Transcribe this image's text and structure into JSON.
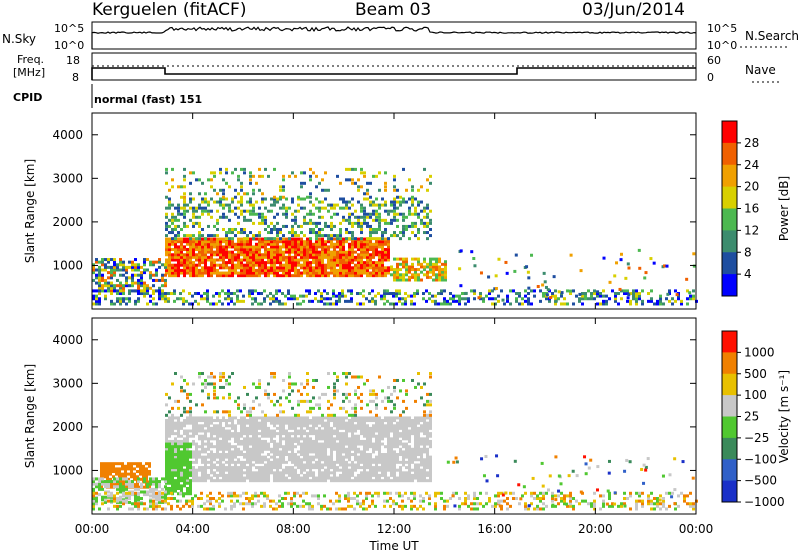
{
  "header": {
    "radar": "Kerguelen (fitACF)",
    "beam": "Beam 03",
    "date": "03/Jun/2014"
  },
  "summary": {
    "nsky_label": "N.Sky",
    "nsky_ticks": [
      "10^5",
      "10^0"
    ],
    "nsearch_label": "N.Search",
    "nsearch_ticks": [
      "10^5",
      "10^0"
    ],
    "freq_label_line1": "Freq.",
    "freq_label_line2": "[MHz]",
    "freq_ticks": [
      "18",
      "8"
    ],
    "nave_label": "Nave",
    "nave_ticks": [
      "60",
      "0"
    ],
    "cpid_label": "CPID",
    "cpid_text": "normal (fast) 151"
  },
  "chart_data": [
    {
      "type": "heatmap",
      "name": "power",
      "ylabel": "Slant Range [km]",
      "y_ticks": [
        "1000",
        "2000",
        "3000",
        "4000"
      ],
      "colorbar_label": "Power [dB]",
      "colorbar_ticks": [
        "4",
        "8",
        "12",
        "16",
        "20",
        "24",
        "28"
      ],
      "colors": [
        "#0000ff",
        "#1e4ea0",
        "#3c8c6e",
        "#4cb850",
        "#d8d000",
        "#f0a000",
        "#f06000",
        "#ff0000"
      ]
    },
    {
      "type": "heatmap",
      "name": "velocity",
      "ylabel": "Slant Range [km]",
      "y_ticks": [
        "1000",
        "2000",
        "3000",
        "4000"
      ],
      "colorbar_label": "Velocity [m s⁻¹]",
      "colorbar_ticks": [
        "1000",
        "500",
        "100",
        "25",
        "−25",
        "−100",
        "−500",
        "−1000"
      ],
      "colors": [
        "#1a30c8",
        "#3060c8",
        "#3a8a5a",
        "#50c830",
        "#c8c8c8",
        "#e8c000",
        "#f08000",
        "#ff1000"
      ]
    }
  ],
  "xaxis": {
    "label": "Time UT",
    "ticks": [
      "00:00",
      "04:00",
      "08:00",
      "12:00",
      "16:00",
      "20:00",
      "00:00"
    ]
  }
}
